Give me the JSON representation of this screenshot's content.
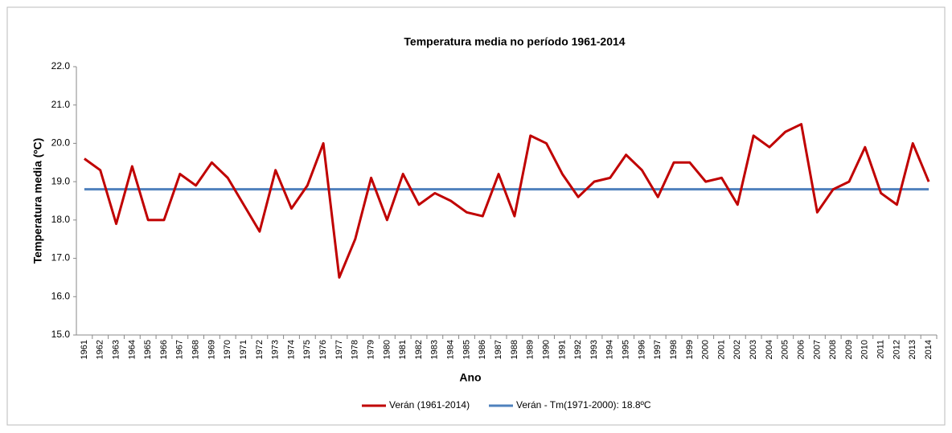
{
  "chart_data": {
    "type": "line",
    "title": "Temperatura media no período 1961-2014",
    "x_label": "Ano",
    "y_label": "Temperatura media  (ºC)",
    "categories": [
      "1961",
      "1962",
      "1963",
      "1964",
      "1965",
      "1966",
      "1967",
      "1968",
      "1969",
      "1970",
      "1971",
      "1972",
      "1973",
      "1974",
      "1975",
      "1976",
      "1977",
      "1978",
      "1979",
      "1980",
      "1981",
      "1982",
      "1983",
      "1984",
      "1985",
      "1986",
      "1987",
      "1988",
      "1989",
      "1990",
      "1991",
      "1992",
      "1993",
      "1994",
      "1995",
      "1996",
      "1997",
      "1998",
      "1999",
      "2000",
      "2001",
      "2002",
      "2003",
      "2004",
      "2005",
      "2006",
      "2007",
      "2008",
      "2009",
      "2010",
      "2011",
      "2012",
      "2013",
      "2014"
    ],
    "series": [
      {
        "name": "Verán (1961-2014)",
        "color": "#c00000",
        "values": [
          19.6,
          19.3,
          17.9,
          19.4,
          18.0,
          18.0,
          19.2,
          18.9,
          19.5,
          19.1,
          18.4,
          17.7,
          19.3,
          18.3,
          18.9,
          20.0,
          16.5,
          17.5,
          19.1,
          18.0,
          19.2,
          18.4,
          18.7,
          18.5,
          18.2,
          18.1,
          19.2,
          18.1,
          20.2,
          20.0,
          19.2,
          18.6,
          19.0,
          19.1,
          19.7,
          19.3,
          18.6,
          19.5,
          19.5,
          19.0,
          19.1,
          18.4,
          20.2,
          19.9,
          20.3,
          20.5,
          18.2,
          18.8,
          19.0,
          19.9,
          18.7,
          18.4,
          20.0,
          19.0
        ]
      }
    ],
    "reference": {
      "name": "Verán - Tm(1971-2000): 18.8ºC",
      "color": "#4f81bd",
      "value": 18.8
    },
    "ylim": [
      15,
      22
    ],
    "yticks": [
      {
        "value": 15,
        "label": "15.0"
      },
      {
        "value": 16,
        "label": "16.0"
      },
      {
        "value": 17,
        "label": "17.0"
      },
      {
        "value": 18,
        "label": "18.0"
      },
      {
        "value": 19,
        "label": "19.0"
      },
      {
        "value": 20,
        "label": "20.0"
      },
      {
        "value": 21,
        "label": "21.0"
      },
      {
        "value": 22,
        "label": "22.0"
      }
    ],
    "grid": false,
    "legend": "bottom"
  }
}
